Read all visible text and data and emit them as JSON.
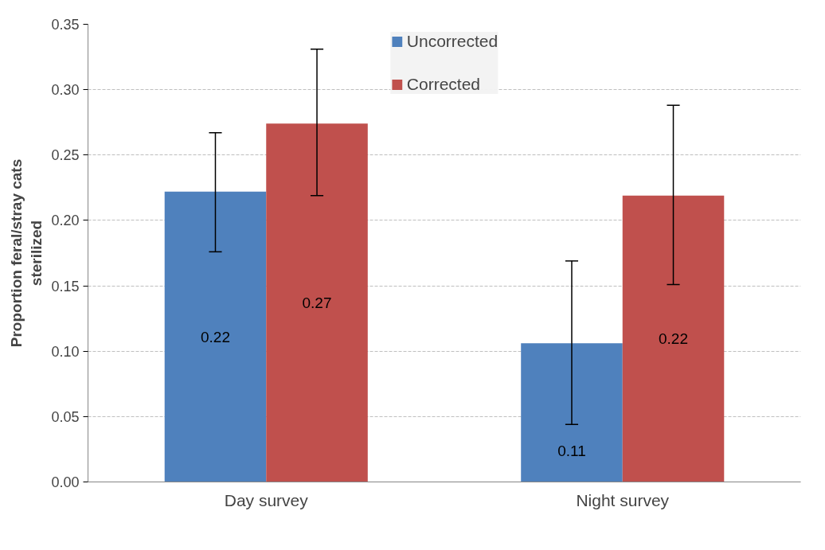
{
  "chart_data": {
    "type": "bar",
    "ylabel": "Proportion feral/stray cats\nsterilized",
    "categories": [
      "Day survey",
      "Night survey"
    ],
    "series": [
      {
        "name": "Uncorrected",
        "color": "#4f81bd",
        "values": [
          0.222,
          0.106
        ],
        "errors": [
          [
            0.176,
            0.267
          ],
          [
            0.044,
            0.169
          ]
        ],
        "value_labels": [
          "0.22",
          "0.11"
        ]
      },
      {
        "name": "Corrected",
        "color": "#c0504d",
        "values": [
          0.274,
          0.219
        ],
        "errors": [
          [
            0.219,
            0.331
          ],
          [
            0.151,
            0.288
          ]
        ],
        "value_labels": [
          "0.27",
          "0.22"
        ]
      }
    ],
    "ylim": [
      0,
      0.35
    ],
    "yticks": [
      {
        "value": 0,
        "label": "0.00"
      },
      {
        "value": 0.05,
        "label": "0.05"
      },
      {
        "value": 0.1,
        "label": "0.10"
      },
      {
        "value": 0.15,
        "label": "0.15"
      },
      {
        "value": 0.2,
        "label": "0.20"
      },
      {
        "value": 0.25,
        "label": "0.25"
      },
      {
        "value": 0.3,
        "label": "0.30"
      },
      {
        "value": 0.35,
        "label": "0.35"
      }
    ],
    "grid": "y",
    "legend": "top"
  }
}
